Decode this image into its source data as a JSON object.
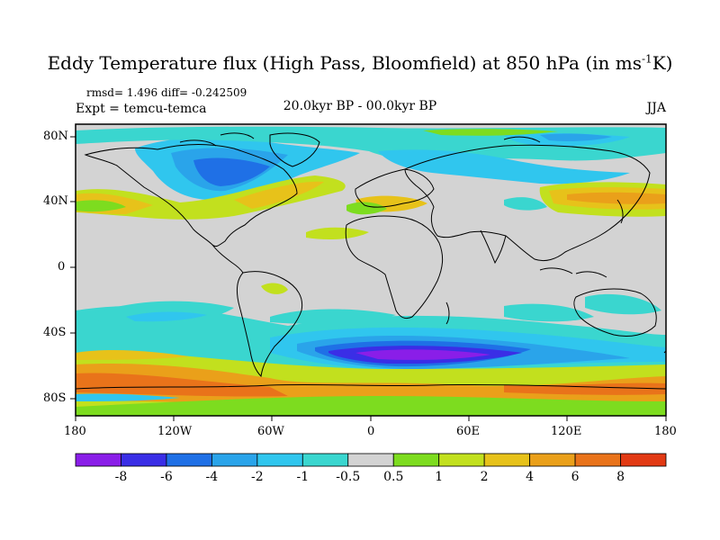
{
  "title": {
    "main": "Eddy Temperature flux (High Pass, Bloomfield) at 850 hPa (in ms",
    "unit_sup": "-1",
    "unit_end": "K)"
  },
  "stats": "rmsd= 1.496 diff= -0.242509",
  "expt": "Expt = temcu-temca",
  "period": "20.0kyr BP - 00.0kyr BP",
  "season": "JJA",
  "lat_labels": [
    "80N",
    "40N",
    "0",
    "40S",
    "80S"
  ],
  "lon_labels": [
    "180",
    "120W",
    "60W",
    "0",
    "60E",
    "120E",
    "180"
  ],
  "colorbar": {
    "levels": [
      "-8",
      "-6",
      "-4",
      "-2",
      "-1",
      "-0.5",
      "0.5",
      "1",
      "2",
      "4",
      "6",
      "8"
    ],
    "colors": [
      "#8a1ee8",
      "#3a2ee6",
      "#1f70e6",
      "#2aa4ea",
      "#30c6ee",
      "#3ad6cf",
      "#d3d3d3",
      "#7ddc1f",
      "#c2e01e",
      "#e7c21a",
      "#eaa01a",
      "#e9731a",
      "#e23a14"
    ]
  },
  "map": {
    "type": "filled contour map of eddy temperature flux difference",
    "projection": "cylindrical equidistant",
    "lon_range": [
      -180,
      180
    ],
    "lat_range": [
      -90,
      90
    ],
    "zero_band_color": "#d3d3d3"
  }
}
